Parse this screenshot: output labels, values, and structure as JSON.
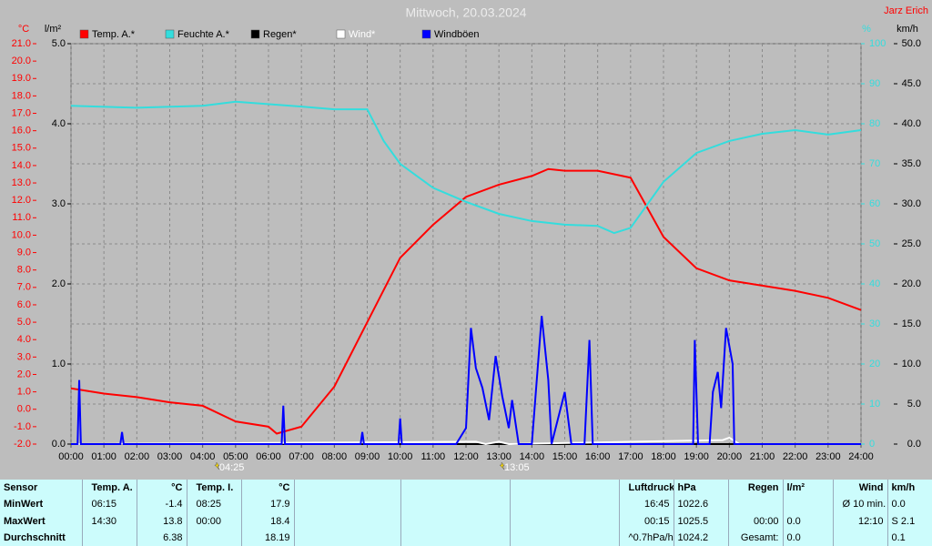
{
  "chart_data": {
    "type": "line",
    "title": "Mittwoch, 20.03.2024",
    "author": "Jarz Erich",
    "ylabel": "°C",
    "y4label": "l/m²",
    "y3label": "%",
    "y2label": "km/h",
    "xlim": [
      0,
      24
    ],
    "xticks": [
      {
        "value": 0,
        "label": "00:00"
      },
      {
        "value": 1,
        "label": "01:00"
      },
      {
        "value": 2,
        "label": "02:00"
      },
      {
        "value": 3,
        "label": "03:00"
      },
      {
        "value": 4,
        "label": "04:00"
      },
      {
        "value": 5,
        "label": "05:00"
      },
      {
        "value": 6,
        "label": "06:00"
      },
      {
        "value": 7,
        "label": "07:00"
      },
      {
        "value": 8,
        "label": "08:00"
      },
      {
        "value": 9,
        "label": "09:00"
      },
      {
        "value": 10,
        "label": "10:00"
      },
      {
        "value": 11,
        "label": "11:00"
      },
      {
        "value": 12,
        "label": "12:00"
      },
      {
        "value": 13,
        "label": "13:00"
      },
      {
        "value": 14,
        "label": "14:00"
      },
      {
        "value": 15,
        "label": "15:00"
      },
      {
        "value": 16,
        "label": "16:00"
      },
      {
        "value": 17,
        "label": "17:00"
      },
      {
        "value": 18,
        "label": "18:00"
      },
      {
        "value": 19,
        "label": "19:00"
      },
      {
        "value": 20,
        "label": "20:00"
      },
      {
        "value": 21,
        "label": "21:00"
      },
      {
        "value": 22,
        "label": "22:00"
      },
      {
        "value": 23,
        "label": "23:00"
      },
      {
        "value": 24,
        "label": "24:00"
      }
    ],
    "ylim": [
      -2,
      21
    ],
    "yticks": [
      {
        "value": -2,
        "label": "-2.0"
      },
      {
        "value": -1,
        "label": "-1.0"
      },
      {
        "value": 0,
        "label": "0.0"
      },
      {
        "value": 1,
        "label": "1.0"
      },
      {
        "value": 2,
        "label": "2.0"
      },
      {
        "value": 3,
        "label": "3.0"
      },
      {
        "value": 4,
        "label": "4.0"
      },
      {
        "value": 5,
        "label": "5.0"
      },
      {
        "value": 6,
        "label": "6.0"
      },
      {
        "value": 7,
        "label": "7.0"
      },
      {
        "value": 8,
        "label": "8.0"
      },
      {
        "value": 9,
        "label": "9.0"
      },
      {
        "value": 10,
        "label": "10.0"
      },
      {
        "value": 11,
        "label": "11.0"
      },
      {
        "value": 12,
        "label": "12.0"
      },
      {
        "value": 13,
        "label": "13.0"
      },
      {
        "value": 14,
        "label": "14.0"
      },
      {
        "value": 15,
        "label": "15.0"
      },
      {
        "value": 16,
        "label": "16.0"
      },
      {
        "value": 17,
        "label": "17.0"
      },
      {
        "value": 18,
        "label": "18.0"
      },
      {
        "value": 19,
        "label": "19.0"
      },
      {
        "value": 20,
        "label": "20.0"
      },
      {
        "value": 21,
        "label": "21.0"
      }
    ],
    "y4lim": [
      0,
      5
    ],
    "y4ticks": [
      {
        "value": 0,
        "label": "0.0"
      },
      {
        "value": 1,
        "label": "1.0"
      },
      {
        "value": 2,
        "label": "2.0"
      },
      {
        "value": 3,
        "label": "3.0"
      },
      {
        "value": 4,
        "label": "4.0"
      },
      {
        "value": 5,
        "label": "5.0"
      }
    ],
    "y3lim": [
      0,
      100
    ],
    "y3ticks": [
      0,
      10,
      20,
      30,
      40,
      50,
      60,
      70,
      80,
      90,
      100
    ],
    "y2lim": [
      0,
      50
    ],
    "y2ticks": [
      {
        "value": 0,
        "label": "0.0"
      },
      {
        "value": 5,
        "label": "5.0"
      },
      {
        "value": 10,
        "label": "10.0"
      },
      {
        "value": 15,
        "label": "15.0"
      },
      {
        "value": 20,
        "label": "20.0"
      },
      {
        "value": 25,
        "label": "25.0"
      },
      {
        "value": 30,
        "label": "30.0"
      },
      {
        "value": 35,
        "label": "35.0"
      },
      {
        "value": 40,
        "label": "40.0"
      },
      {
        "value": 45,
        "label": "45.0"
      },
      {
        "value": 50,
        "label": "50.0"
      }
    ],
    "grid": true,
    "series": [
      {
        "name": "Temp. A.*",
        "color": "#ff0000",
        "axis": "y",
        "x": [
          0,
          1,
          2,
          3,
          4,
          5,
          6,
          6.25,
          7,
          8,
          9,
          10,
          11,
          12,
          13,
          14,
          14.5,
          15,
          16,
          17,
          18,
          19,
          20,
          21,
          22,
          23,
          24
        ],
        "values": [
          1.2,
          0.9,
          0.7,
          0.4,
          0.2,
          -0.7,
          -1.0,
          -1.4,
          -1.0,
          1.3,
          5.0,
          8.7,
          10.6,
          12.2,
          12.9,
          13.4,
          13.8,
          13.7,
          13.7,
          13.3,
          9.9,
          8.1,
          7.4,
          7.1,
          6.8,
          6.4,
          5.7
        ]
      },
      {
        "name": "Feuchte A.*",
        "color": "#33dddd",
        "axis": "y3",
        "x": [
          0,
          2,
          4,
          5,
          7,
          8,
          9,
          9.5,
          10,
          11,
          12,
          13,
          14,
          15,
          16,
          16.5,
          17,
          18,
          19,
          20,
          21,
          22,
          23,
          24
        ],
        "values": [
          84.5,
          84,
          84.5,
          85.5,
          84.3,
          83.6,
          83.6,
          75.7,
          70,
          64,
          60.5,
          57.5,
          55.7,
          54.8,
          54.5,
          52.7,
          54,
          65.5,
          72.7,
          75.7,
          77.5,
          78.4,
          77.3,
          78.4
        ]
      },
      {
        "name": "Regen*",
        "color": "#000000",
        "axis": "y4",
        "x": [
          0,
          24
        ],
        "values": [
          0,
          0
        ]
      },
      {
        "name": "Wind*",
        "color": "#ffffff",
        "axis": "y2",
        "x": [
          0,
          12.3,
          12.6,
          13.0,
          13.3,
          19.8,
          20.0,
          20.3,
          24
        ],
        "values": [
          0,
          0.3,
          0,
          0.3,
          0,
          0.5,
          0.8,
          0,
          0
        ]
      },
      {
        "name": "Windböen",
        "color": "#0000ff",
        "axis": "y2",
        "x": [
          0,
          0.2,
          0.25,
          0.3,
          1.5,
          1.55,
          1.6,
          6.4,
          6.45,
          6.5,
          8.8,
          8.85,
          8.9,
          9.95,
          10.0,
          10.05,
          11.7,
          12.0,
          12.15,
          12.3,
          12.5,
          12.7,
          12.9,
          13.1,
          13.3,
          13.4,
          13.6,
          14.0,
          14.3,
          14.5,
          14.6,
          15.0,
          15.2,
          15.6,
          15.75,
          15.85,
          18.9,
          18.95,
          19.05,
          19.4,
          19.5,
          19.65,
          19.75,
          19.9,
          20.1,
          20.15,
          24
        ],
        "values": [
          0,
          0,
          8,
          0,
          0,
          1.5,
          0,
          0,
          4.8,
          0,
          0,
          1.5,
          0,
          0,
          3.2,
          0,
          0,
          2,
          14.5,
          9.5,
          7,
          3,
          11,
          6,
          2,
          5.5,
          0,
          0,
          16,
          8,
          0,
          6.5,
          0,
          0,
          13,
          0,
          0,
          13,
          0,
          0,
          6.5,
          9,
          4.5,
          14.5,
          10,
          0,
          0
        ]
      }
    ],
    "annotations": [
      {
        "x": 4.42,
        "label": "04:25"
      },
      {
        "x": 13.08,
        "label": "13:05"
      }
    ]
  },
  "table": {
    "rows": [
      [
        "Sensor",
        "Temp. A.",
        "°C",
        "Temp. I.",
        "°C",
        null,
        null,
        null,
        "Luftdruck",
        "hPa",
        "Regen",
        "l/m²",
        "Wind",
        "km/h"
      ],
      [
        "MinWert",
        "06:15",
        "-1.4",
        "08:25",
        "17.9",
        null,
        null,
        null,
        "16:45",
        "1022.6",
        null,
        null,
        "Ø 10 min.",
        "0.0"
      ],
      [
        "MaxWert",
        "14:30",
        "13.8",
        "00:00",
        "18.4",
        null,
        null,
        null,
        "00:15",
        "1025.5",
        "00:00",
        "0.0",
        "12:10",
        "S 2.1"
      ],
      [
        "Durchschnitt",
        null,
        "6.38",
        null,
        "18.19",
        null,
        null,
        null,
        "^0.7hPa/h",
        "1024.2",
        "Gesamt:",
        "0.0",
        null,
        "0.1"
      ]
    ]
  }
}
